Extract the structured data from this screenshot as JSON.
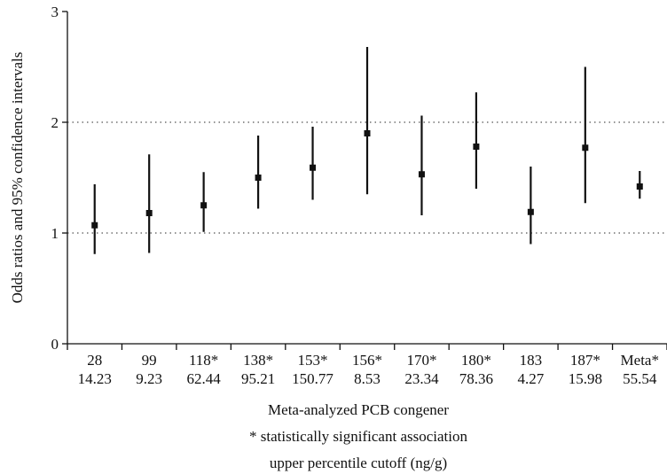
{
  "chart_data": {
    "type": "scatter",
    "subtype": "odds-ratio point estimates with 95% confidence interval error bars",
    "ylabel": "Odds ratios and 95% confidence intervals",
    "xlabel_lines": [
      "Meta-analyzed PCB congener",
      "* statistically significant association",
      "upper percentile cutoff (ng/g)"
    ],
    "ylim": [
      0,
      3
    ],
    "yticks": [
      "0",
      "1",
      "2",
      "3"
    ],
    "reference_lines": [
      1,
      2
    ],
    "reference_line_style": "dotted",
    "grid": false,
    "legend": "none",
    "categories": [
      {
        "label": "28",
        "cutoff": "14.23"
      },
      {
        "label": "99",
        "cutoff": "9.23"
      },
      {
        "label": "118*",
        "cutoff": "62.44"
      },
      {
        "label": "138*",
        "cutoff": "95.21"
      },
      {
        "label": "153*",
        "cutoff": "150.77"
      },
      {
        "label": "156*",
        "cutoff": "8.53"
      },
      {
        "label": "170*",
        "cutoff": "23.34"
      },
      {
        "label": "180*",
        "cutoff": "78.36"
      },
      {
        "label": "183",
        "cutoff": "4.27"
      },
      {
        "label": "187*",
        "cutoff": "15.98"
      },
      {
        "label": "Meta*",
        "cutoff": "55.54"
      }
    ],
    "series": [
      {
        "odds_ratio": [
          1.07,
          1.18,
          1.25,
          1.5,
          1.59,
          1.9,
          1.53,
          1.78,
          1.19,
          1.77,
          1.42
        ],
        "ci_lower": [
          0.81,
          0.82,
          1.01,
          1.22,
          1.3,
          1.35,
          1.16,
          1.4,
          0.9,
          1.27,
          1.31
        ],
        "ci_upper": [
          1.44,
          1.71,
          1.55,
          1.88,
          1.96,
          2.68,
          2.06,
          2.27,
          1.6,
          2.5,
          1.56
        ]
      }
    ],
    "colors": {
      "marker": "#111111",
      "axis": "#111111",
      "reference": "#555555"
    }
  }
}
